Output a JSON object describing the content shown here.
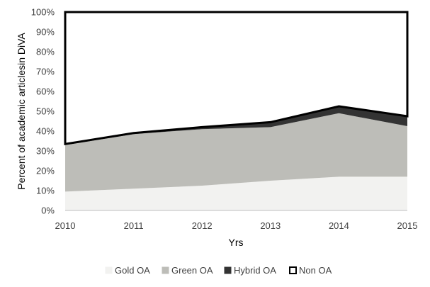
{
  "chart_data": {
    "type": "area",
    "stacked": true,
    "x": [
      2010,
      2011,
      2012,
      2013,
      2014,
      2015
    ],
    "xlabel": "Yrs",
    "ylabel": "Percent of academic articlesin DiVA",
    "ylim": [
      0,
      100
    ],
    "yticks": [
      "0%",
      "10%",
      "20%",
      "30%",
      "40%",
      "50%",
      "60%",
      "70%",
      "80%",
      "90%",
      "100%"
    ],
    "series": [
      {
        "name": "Gold OA",
        "values": [
          9.5,
          11,
          12.5,
          15,
          17,
          17
        ],
        "color": "#f2f2f0",
        "border": "#f2f2f0"
      },
      {
        "name": "Green OA",
        "values": [
          23.5,
          27.5,
          28.5,
          27,
          32,
          25.5
        ],
        "color": "#bdbdb8",
        "border": "#bdbdb8"
      },
      {
        "name": "Hybrid OA",
        "values": [
          0.5,
          0.5,
          1,
          2.5,
          3.5,
          5
        ],
        "color": "#333333",
        "border": "#333333"
      },
      {
        "name": "Non OA",
        "values": [
          66.5,
          61,
          58,
          55.5,
          47.5,
          52.5
        ],
        "color": "#ffffff",
        "border": "#000000"
      }
    ],
    "legend_position": "bottom",
    "grid": false
  }
}
